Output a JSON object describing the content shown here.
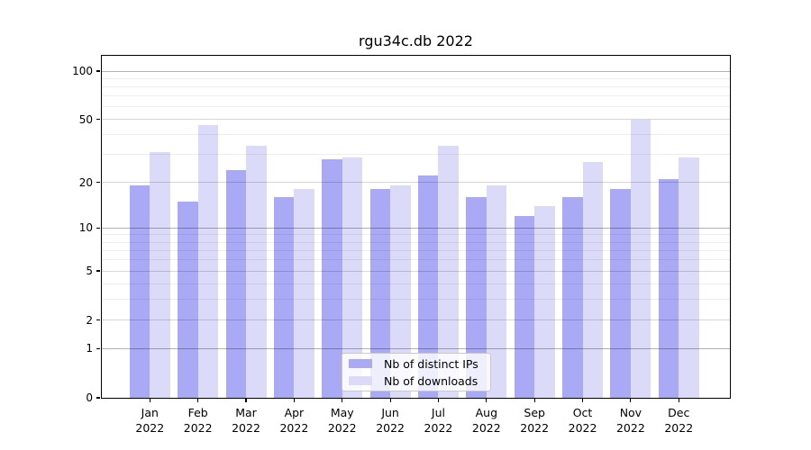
{
  "chart_data": {
    "type": "bar",
    "title": "rgu34c.db 2022",
    "categories": [
      "Jan 2022",
      "Feb 2022",
      "Mar 2022",
      "Apr 2022",
      "May 2022",
      "Jun 2022",
      "Jul 2022",
      "Aug 2022",
      "Sep 2022",
      "Oct 2022",
      "Nov 2022",
      "Dec 2022"
    ],
    "x_months": [
      "Jan",
      "Feb",
      "Mar",
      "Apr",
      "May",
      "Jun",
      "Jul",
      "Aug",
      "Sep",
      "Oct",
      "Nov",
      "Dec"
    ],
    "x_year": "2022",
    "series": [
      {
        "name": "Nb of distinct IPs",
        "color": "#a9a9f6",
        "values": [
          19,
          15,
          24,
          16,
          28,
          18,
          22,
          16,
          12,
          16,
          18,
          21
        ]
      },
      {
        "name": "Nb of downloads",
        "color": "#dbdbf9",
        "values": [
          31,
          46,
          34,
          18,
          29,
          19,
          34,
          19,
          14,
          27,
          50,
          29
        ]
      }
    ],
    "y_axis": {
      "scale": "log10(1+value)",
      "tick_values": [
        0,
        1,
        2,
        5,
        10,
        20,
        50,
        100
      ],
      "tick_labels": [
        "0",
        "1",
        "2",
        "5",
        "10",
        "20",
        "50",
        "100"
      ],
      "minor_gridline_values": [
        3,
        4,
        6,
        7,
        8,
        9,
        30,
        40,
        60,
        70,
        80,
        90
      ],
      "emphasized_gridline_values": [
        1,
        10,
        100
      ],
      "ylim": [
        0,
        125
      ],
      "grid": "on"
    },
    "legend": {
      "position": "lower center",
      "labels": [
        "Nb of distinct IPs",
        "Nb of downloads"
      ]
    },
    "colors": {
      "grid_minor": "rgba(0,0,0,0.07)",
      "grid_major": "rgba(0,0,0,0.16)",
      "grid_emphasized": "rgba(0,0,0,0.30)",
      "axis": "#000000",
      "background": "#ffffff"
    }
  }
}
